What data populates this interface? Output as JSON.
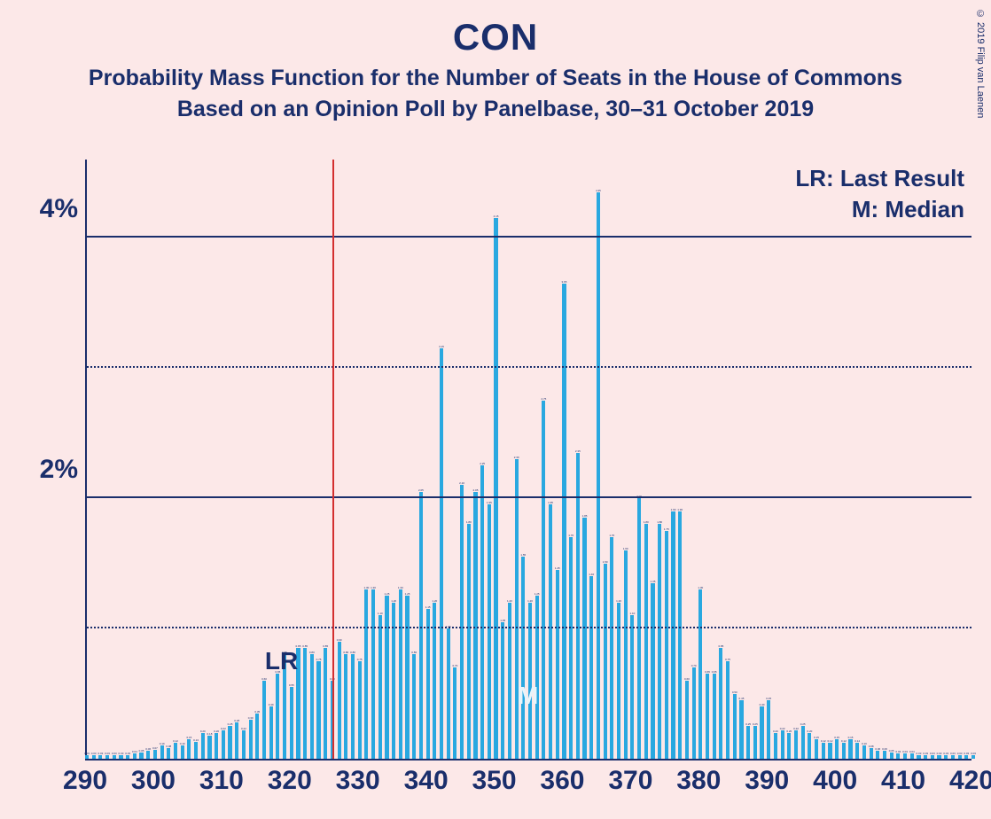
{
  "copyright": "© 2019 Filip van Laenen",
  "title": "CON",
  "subtitle1": "Probability Mass Function for the Number of Seats in the House of Commons",
  "subtitle2": "Based on an Opinion Poll by Panelbase, 30–31 October 2019",
  "legend": {
    "lr": "LR: Last Result",
    "m": "M: Median"
  },
  "marker_lr": "LR",
  "marker_m": "M",
  "chart": {
    "type": "bar",
    "background_color": "#fce8e8",
    "bar_color": "#29a8e0",
    "axis_color": "#1a2e6b",
    "lr_line_color": "#d32f2f",
    "title_color": "#1a2e6b",
    "x_min": 290,
    "x_max": 420,
    "y_min": 0,
    "y_max": 4.6,
    "y_ticks_major": [
      2,
      4
    ],
    "y_ticks_minor": [
      1,
      3
    ],
    "y_tick_labels": {
      "2": "2%",
      "4": "4%"
    },
    "x_ticks": [
      290,
      300,
      310,
      320,
      330,
      340,
      350,
      360,
      370,
      380,
      390,
      400,
      410,
      420
    ],
    "lr_x": 326,
    "median_x": 355,
    "title_fontsize": 42,
    "subtitle_fontsize": 25,
    "axis_label_fontsize": 30,
    "legend_fontsize": 26,
    "bar_width_ratio": 0.55,
    "values": [
      {
        "x": 290,
        "y": 0.03
      },
      {
        "x": 291,
        "y": 0.03
      },
      {
        "x": 292,
        "y": 0.03
      },
      {
        "x": 293,
        "y": 0.03
      },
      {
        "x": 294,
        "y": 0.03
      },
      {
        "x": 295,
        "y": 0.03
      },
      {
        "x": 296,
        "y": 0.03
      },
      {
        "x": 297,
        "y": 0.04
      },
      {
        "x": 298,
        "y": 0.05
      },
      {
        "x": 299,
        "y": 0.06
      },
      {
        "x": 300,
        "y": 0.07
      },
      {
        "x": 301,
        "y": 0.1
      },
      {
        "x": 302,
        "y": 0.08
      },
      {
        "x": 303,
        "y": 0.12
      },
      {
        "x": 304,
        "y": 0.1
      },
      {
        "x": 305,
        "y": 0.15
      },
      {
        "x": 306,
        "y": 0.13
      },
      {
        "x": 307,
        "y": 0.2
      },
      {
        "x": 308,
        "y": 0.18
      },
      {
        "x": 309,
        "y": 0.2
      },
      {
        "x": 310,
        "y": 0.22
      },
      {
        "x": 311,
        "y": 0.25
      },
      {
        "x": 312,
        "y": 0.28
      },
      {
        "x": 313,
        "y": 0.22
      },
      {
        "x": 314,
        "y": 0.3
      },
      {
        "x": 315,
        "y": 0.35
      },
      {
        "x": 316,
        "y": 0.6
      },
      {
        "x": 317,
        "y": 0.4
      },
      {
        "x": 318,
        "y": 0.65
      },
      {
        "x": 319,
        "y": 0.8
      },
      {
        "x": 320,
        "y": 0.55
      },
      {
        "x": 321,
        "y": 0.85
      },
      {
        "x": 322,
        "y": 0.85
      },
      {
        "x": 323,
        "y": 0.8
      },
      {
        "x": 324,
        "y": 0.75
      },
      {
        "x": 325,
        "y": 0.85
      },
      {
        "x": 326,
        "y": 0.6
      },
      {
        "x": 327,
        "y": 0.9
      },
      {
        "x": 328,
        "y": 0.8
      },
      {
        "x": 329,
        "y": 0.8
      },
      {
        "x": 330,
        "y": 0.75
      },
      {
        "x": 331,
        "y": 1.3
      },
      {
        "x": 332,
        "y": 1.3
      },
      {
        "x": 333,
        "y": 1.1
      },
      {
        "x": 334,
        "y": 1.25
      },
      {
        "x": 335,
        "y": 1.2
      },
      {
        "x": 336,
        "y": 1.3
      },
      {
        "x": 337,
        "y": 1.25
      },
      {
        "x": 338,
        "y": 0.8
      },
      {
        "x": 339,
        "y": 2.05
      },
      {
        "x": 340,
        "y": 1.15
      },
      {
        "x": 341,
        "y": 1.2
      },
      {
        "x": 342,
        "y": 3.15
      },
      {
        "x": 343,
        "y": 1.0
      },
      {
        "x": 344,
        "y": 0.7
      },
      {
        "x": 345,
        "y": 2.1
      },
      {
        "x": 346,
        "y": 1.8
      },
      {
        "x": 347,
        "y": 2.05
      },
      {
        "x": 348,
        "y": 2.25
      },
      {
        "x": 349,
        "y": 1.95
      },
      {
        "x": 350,
        "y": 4.15
      },
      {
        "x": 351,
        "y": 1.05
      },
      {
        "x": 352,
        "y": 1.2
      },
      {
        "x": 353,
        "y": 2.3
      },
      {
        "x": 354,
        "y": 1.55
      },
      {
        "x": 355,
        "y": 1.2
      },
      {
        "x": 356,
        "y": 1.25
      },
      {
        "x": 357,
        "y": 2.75
      },
      {
        "x": 358,
        "y": 1.95
      },
      {
        "x": 359,
        "y": 1.45
      },
      {
        "x": 360,
        "y": 3.65
      },
      {
        "x": 361,
        "y": 1.7
      },
      {
        "x": 362,
        "y": 2.35
      },
      {
        "x": 363,
        "y": 1.85
      },
      {
        "x": 364,
        "y": 1.4
      },
      {
        "x": 365,
        "y": 4.35
      },
      {
        "x": 366,
        "y": 1.5
      },
      {
        "x": 367,
        "y": 1.7
      },
      {
        "x": 368,
        "y": 1.2
      },
      {
        "x": 369,
        "y": 1.6
      },
      {
        "x": 370,
        "y": 1.1
      },
      {
        "x": 371,
        "y": 2.0
      },
      {
        "x": 372,
        "y": 1.8
      },
      {
        "x": 373,
        "y": 1.35
      },
      {
        "x": 374,
        "y": 1.8
      },
      {
        "x": 375,
        "y": 1.75
      },
      {
        "x": 376,
        "y": 1.9
      },
      {
        "x": 377,
        "y": 1.9
      },
      {
        "x": 378,
        "y": 0.6
      },
      {
        "x": 379,
        "y": 0.7
      },
      {
        "x": 380,
        "y": 1.3
      },
      {
        "x": 381,
        "y": 0.65
      },
      {
        "x": 382,
        "y": 0.65
      },
      {
        "x": 383,
        "y": 0.85
      },
      {
        "x": 384,
        "y": 0.75
      },
      {
        "x": 385,
        "y": 0.5
      },
      {
        "x": 386,
        "y": 0.45
      },
      {
        "x": 387,
        "y": 0.25
      },
      {
        "x": 388,
        "y": 0.25
      },
      {
        "x": 389,
        "y": 0.4
      },
      {
        "x": 390,
        "y": 0.45
      },
      {
        "x": 391,
        "y": 0.2
      },
      {
        "x": 392,
        "y": 0.22
      },
      {
        "x": 393,
        "y": 0.2
      },
      {
        "x": 394,
        "y": 0.22
      },
      {
        "x": 395,
        "y": 0.25
      },
      {
        "x": 396,
        "y": 0.2
      },
      {
        "x": 397,
        "y": 0.15
      },
      {
        "x": 398,
        "y": 0.12
      },
      {
        "x": 399,
        "y": 0.12
      },
      {
        "x": 400,
        "y": 0.15
      },
      {
        "x": 401,
        "y": 0.12
      },
      {
        "x": 402,
        "y": 0.15
      },
      {
        "x": 403,
        "y": 0.12
      },
      {
        "x": 404,
        "y": 0.1
      },
      {
        "x": 405,
        "y": 0.08
      },
      {
        "x": 406,
        "y": 0.06
      },
      {
        "x": 407,
        "y": 0.06
      },
      {
        "x": 408,
        "y": 0.05
      },
      {
        "x": 409,
        "y": 0.04
      },
      {
        "x": 410,
        "y": 0.04
      },
      {
        "x": 411,
        "y": 0.04
      },
      {
        "x": 412,
        "y": 0.03
      },
      {
        "x": 413,
        "y": 0.03
      },
      {
        "x": 414,
        "y": 0.03
      },
      {
        "x": 415,
        "y": 0.03
      },
      {
        "x": 416,
        "y": 0.03
      },
      {
        "x": 417,
        "y": 0.03
      },
      {
        "x": 418,
        "y": 0.03
      },
      {
        "x": 419,
        "y": 0.03
      },
      {
        "x": 420,
        "y": 0.03
      }
    ]
  }
}
